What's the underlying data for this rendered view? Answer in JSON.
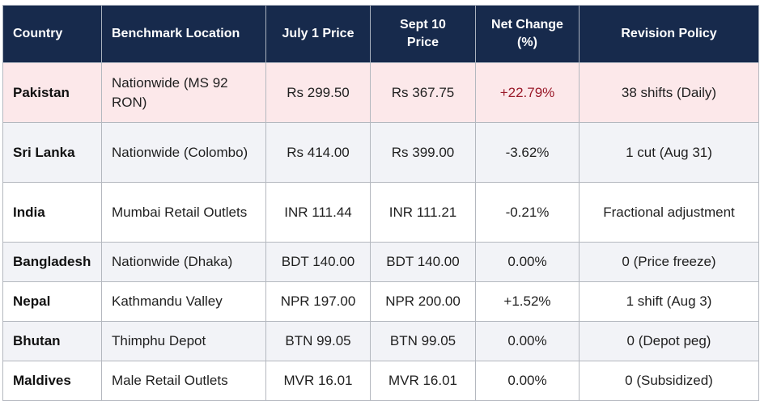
{
  "headers": {
    "country": "Country",
    "location": "Benchmark Location",
    "july_price": "July 1 Price",
    "sept_price_line1": "Sept 10",
    "sept_price_line2": "Price",
    "net_change_line1": "Net Change",
    "net_change_line2": "(%)",
    "revision_policy": "Revision Policy"
  },
  "rows": [
    {
      "country": "Pakistan",
      "location": "Nationwide (MS 92 RON)",
      "july_price": "Rs 299.50",
      "sept_price": "Rs 367.75",
      "net_change": "+22.79%",
      "revision_policy": "38 shifts (Daily)"
    },
    {
      "country": "Sri Lanka",
      "location": "Nationwide (Colombo)",
      "july_price": "Rs 414.00",
      "sept_price": "Rs 399.00",
      "net_change": "-3.62%",
      "revision_policy": "1 cut (Aug 31)"
    },
    {
      "country": "India",
      "location": "Mumbai Retail Outlets",
      "july_price": "INR 111.44",
      "sept_price": "INR 111.21",
      "net_change": "-0.21%",
      "revision_policy": "Fractional adjustment"
    },
    {
      "country": "Bangladesh",
      "location": "Nationwide (Dhaka)",
      "july_price": "BDT 140.00",
      "sept_price": "BDT 140.00",
      "net_change": "0.00%",
      "revision_policy": "0 (Price freeze)"
    },
    {
      "country": "Nepal",
      "location": "Kathmandu Valley",
      "july_price": "NPR 197.00",
      "sept_price": "NPR 200.00",
      "net_change": "+1.52%",
      "revision_policy": "1 shift (Aug 3)"
    },
    {
      "country": "Bhutan",
      "location": "Thimphu Depot",
      "july_price": "BTN 99.05",
      "sept_price": "BTN 99.05",
      "net_change": "0.00%",
      "revision_policy": "0 (Depot peg)"
    },
    {
      "country": "Maldives",
      "location": "Male Retail Outlets",
      "july_price": "MVR 16.01",
      "sept_price": "MVR 16.01",
      "net_change": "0.00%",
      "revision_policy": "0 (Subsidized)"
    }
  ],
  "colors": {
    "header_bg": "#172a4c",
    "highlight_row_bg": "#fce8ea",
    "alt_row_bg": "#f2f3f7",
    "positive_change_highlight": "#9a1a2a"
  }
}
